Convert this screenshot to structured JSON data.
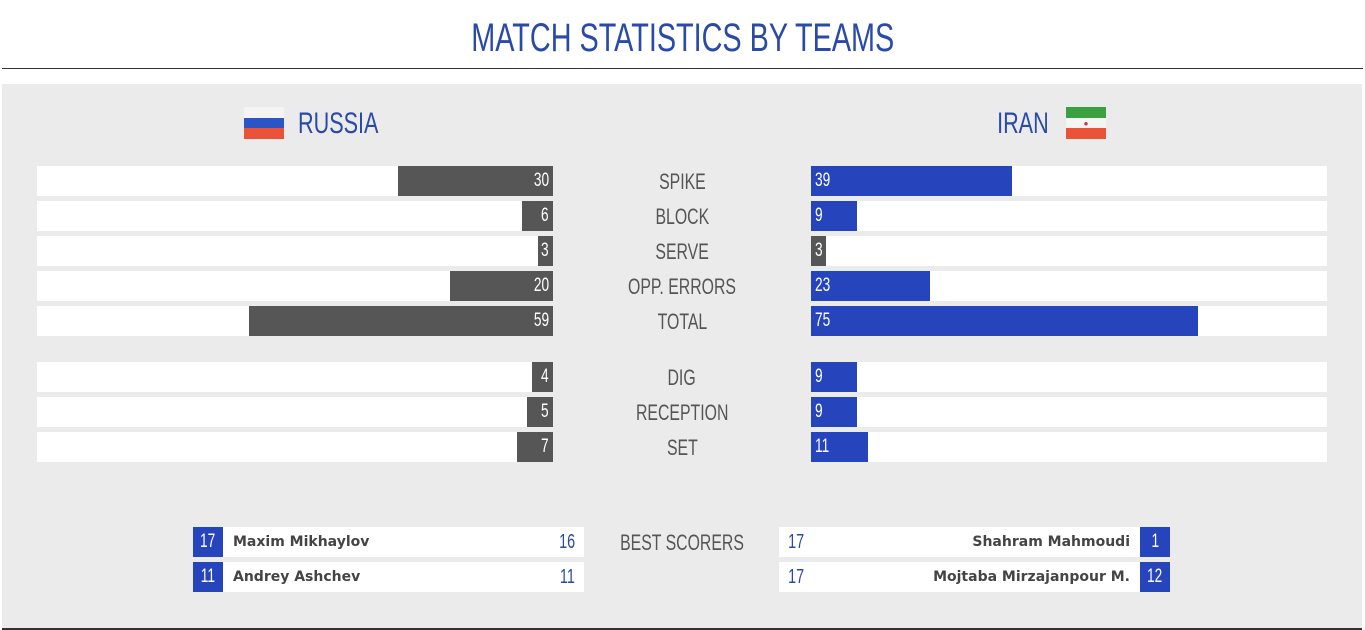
{
  "title": "MATCH STATISTICS BY TEAMS",
  "teams": {
    "left": "RUSSIA",
    "right": "IRAN"
  },
  "colors": {
    "left_bar": "#565656",
    "right_bar": "#2645bd",
    "accent": "#2a4aa8"
  },
  "scale_max": 100,
  "stats": [
    {
      "label": "SPIKE",
      "left": 30,
      "right": 39
    },
    {
      "label": "BLOCK",
      "left": 6,
      "right": 9
    },
    {
      "label": "SERVE",
      "left": 3,
      "right": 3
    },
    {
      "label": "OPP. ERRORS",
      "left": 20,
      "right": 23
    },
    {
      "label": "TOTAL",
      "left": 59,
      "right": 75
    },
    {
      "label": "DIG",
      "left": 4,
      "right": 9
    },
    {
      "label": "RECEPTION",
      "left": 5,
      "right": 9
    },
    {
      "label": "SET",
      "left": 7,
      "right": 11
    }
  ],
  "best_scorers_label": "BEST SCORERS",
  "left_scorers": [
    {
      "number": "17",
      "name": "Maxim Mikhaylov",
      "points": "16"
    },
    {
      "number": "11",
      "name": "Andrey Ashchev",
      "points": "11"
    }
  ],
  "right_scorers": [
    {
      "points": "17",
      "name": "Shahram Mahmoudi",
      "number": "1"
    },
    {
      "points": "17",
      "name": "Mojtaba Mirzajanpour M.",
      "number": "12"
    }
  ]
}
